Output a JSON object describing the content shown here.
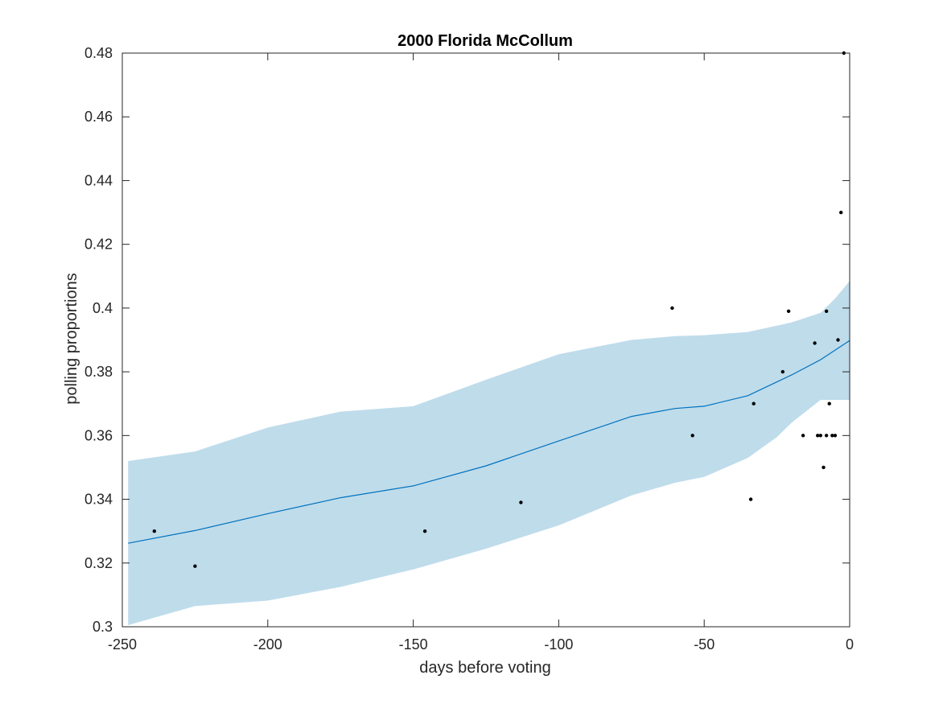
{
  "chart_data": {
    "type": "line",
    "title": "2000 Florida McCollum",
    "xlabel": "days before voting",
    "ylabel": "polling proportions",
    "xlim": [
      -250,
      0
    ],
    "ylim": [
      0.3,
      0.48
    ],
    "xticks": [
      -250,
      -200,
      -150,
      -100,
      -50,
      0
    ],
    "yticks": [
      0.3,
      0.32,
      0.34,
      0.36,
      0.38,
      0.4,
      0.42,
      0.44,
      0.46,
      0.48
    ],
    "xtick_labels": [
      "-250",
      "-200",
      "-150",
      "-100",
      "-50",
      "0"
    ],
    "ytick_labels": [
      "0.3",
      "0.32",
      "0.34",
      "0.36",
      "0.38",
      "0.4",
      "0.42",
      "0.44",
      "0.46",
      "0.48"
    ],
    "grid": false,
    "colors": {
      "trend": "#0072BD",
      "band": "#BFDCEB",
      "points": "#000000"
    },
    "trend": {
      "x": [
        -248,
        -225,
        -200,
        -175,
        -150,
        -125,
        -100,
        -75,
        -60,
        -50,
        -35,
        -20,
        -10,
        0
      ],
      "y": [
        0.3262,
        0.3302,
        0.3355,
        0.3405,
        0.3442,
        0.3505,
        0.3583,
        0.366,
        0.3685,
        0.3692,
        0.3725,
        0.379,
        0.3838,
        0.3898
      ]
    },
    "band": {
      "x": [
        -248,
        -225,
        -200,
        -175,
        -150,
        -125,
        -100,
        -75,
        -60,
        -50,
        -35,
        -25,
        -20,
        -10,
        -5,
        0
      ],
      "upper": [
        0.352,
        0.355,
        0.3625,
        0.3675,
        0.3692,
        0.3775,
        0.3855,
        0.39,
        0.3912,
        0.3915,
        0.3925,
        0.3945,
        0.3955,
        0.3985,
        0.403,
        0.4085
      ],
      "lower": [
        0.3005,
        0.3065,
        0.3082,
        0.3125,
        0.318,
        0.3245,
        0.3318,
        0.3412,
        0.3452,
        0.347,
        0.353,
        0.3595,
        0.364,
        0.3712,
        0.3712,
        0.3712
      ]
    },
    "points": {
      "x": [
        -239,
        -225,
        -146,
        -113,
        -61,
        -54,
        -34,
        -33,
        -23,
        -21,
        -16,
        -12,
        -11,
        -10,
        -9,
        -8,
        -8,
        -7,
        -6,
        -5,
        -4,
        -3
      ],
      "y": [
        0.33,
        0.319,
        0.33,
        0.339,
        0.4,
        0.36,
        0.34,
        0.37,
        0.38,
        0.399,
        0.36,
        0.389,
        0.36,
        0.36,
        0.35,
        0.36,
        0.399,
        0.37,
        0.36,
        0.36,
        0.39,
        0.43
      ]
    },
    "points_extra": {
      "x": [
        -2
      ],
      "y": [
        0.48
      ]
    }
  }
}
